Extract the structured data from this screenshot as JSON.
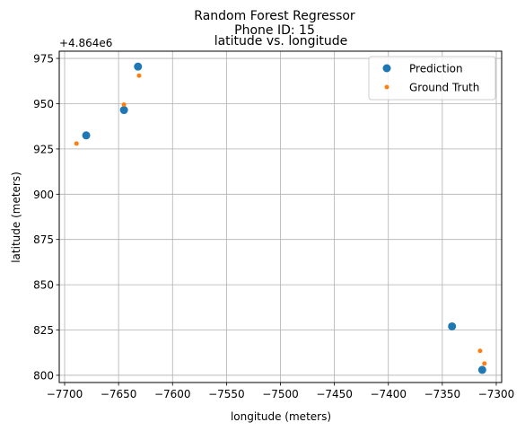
{
  "chart_data": {
    "type": "scatter",
    "suptitle_line1": "Random Forest Regressor",
    "suptitle_line2": "Phone ID: 15",
    "title": "latitude vs. longitude",
    "xlabel": "longitude (meters)",
    "ylabel": "latitude (meters)",
    "y_offset_label": "+4.864e6",
    "xlim": [
      -7705,
      -7295
    ],
    "ylim": [
      796,
      979
    ],
    "x_ticks": [
      -7700,
      -7650,
      -7600,
      -7550,
      -7500,
      -7450,
      -7400,
      -7350,
      -7300
    ],
    "y_ticks": [
      800,
      825,
      850,
      875,
      900,
      925,
      950,
      975
    ],
    "grid": true,
    "legend_position": "top-right",
    "series": [
      {
        "name": "Prediction",
        "color": "#1f77b4",
        "marker": "large-circle",
        "points": [
          {
            "x": -7680,
            "y": 932.5
          },
          {
            "x": -7645,
            "y": 946.5
          },
          {
            "x": -7632,
            "y": 970.5
          },
          {
            "x": -7341,
            "y": 827
          },
          {
            "x": -7313,
            "y": 803
          }
        ]
      },
      {
        "name": "Ground Truth",
        "color": "#ff7f0e",
        "marker": "small-circle",
        "points": [
          {
            "x": -7689,
            "y": 928
          },
          {
            "x": -7645,
            "y": 949.5
          },
          {
            "x": -7631,
            "y": 965.5
          },
          {
            "x": -7315,
            "y": 813.5
          },
          {
            "x": -7311,
            "y": 806.5
          }
        ]
      }
    ]
  }
}
